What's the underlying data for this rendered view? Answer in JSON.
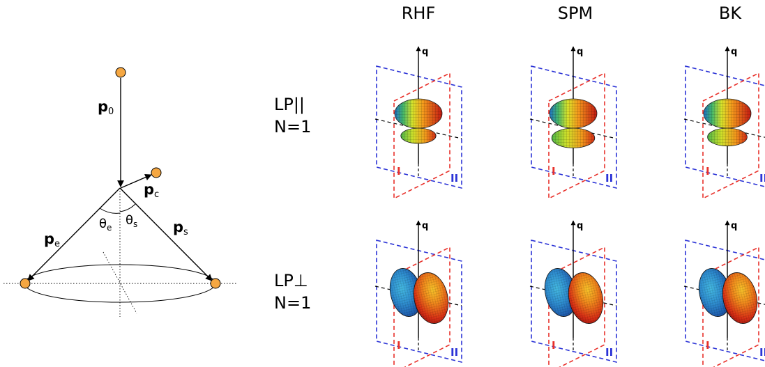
{
  "kinematics": {
    "p0": "p",
    "p0_sub": "0",
    "pc": "p",
    "pc_sub": "c",
    "pe": "p",
    "pe_sub": "e",
    "ps": "p",
    "ps_sub": "s",
    "theta_e": "θ",
    "theta_e_sub": "e",
    "theta_s": "θ",
    "theta_s_sub": "s"
  },
  "columns": [
    "RHF",
    "SPM",
    "BK"
  ],
  "rows": [
    {
      "line1": "LP||",
      "line2": "N=1",
      "orientation": "vertical"
    },
    {
      "line1": "LP⊥",
      "line2": "N=1",
      "orientation": "horizontal"
    }
  ],
  "panel": {
    "axis_label": "q",
    "plane_red_label": "I",
    "plane_blue_label": "II"
  },
  "colors": {
    "particle_fill": "#f5a742",
    "plane_red": "#e8302a",
    "plane_blue": "#2b33d6",
    "lobe_hot": "#e02418",
    "lobe_mid": "#f6d21e",
    "lobe_green": "#66c244",
    "lobe_cool": "#1f72c6"
  },
  "panels": [
    {
      "row": 0,
      "col": 0,
      "lobe_a": 1.0,
      "lobe_b": 0.45
    },
    {
      "row": 0,
      "col": 1,
      "lobe_a": 1.0,
      "lobe_b": 0.8
    },
    {
      "row": 0,
      "col": 2,
      "lobe_a": 1.0,
      "lobe_b": 0.65
    },
    {
      "row": 1,
      "col": 0,
      "lobe_a": 1.0,
      "lobe_b": 1.0
    },
    {
      "row": 1,
      "col": 1,
      "lobe_a": 1.0,
      "lobe_b": 1.0
    },
    {
      "row": 1,
      "col": 2,
      "lobe_a": 1.0,
      "lobe_b": 1.0
    }
  ]
}
